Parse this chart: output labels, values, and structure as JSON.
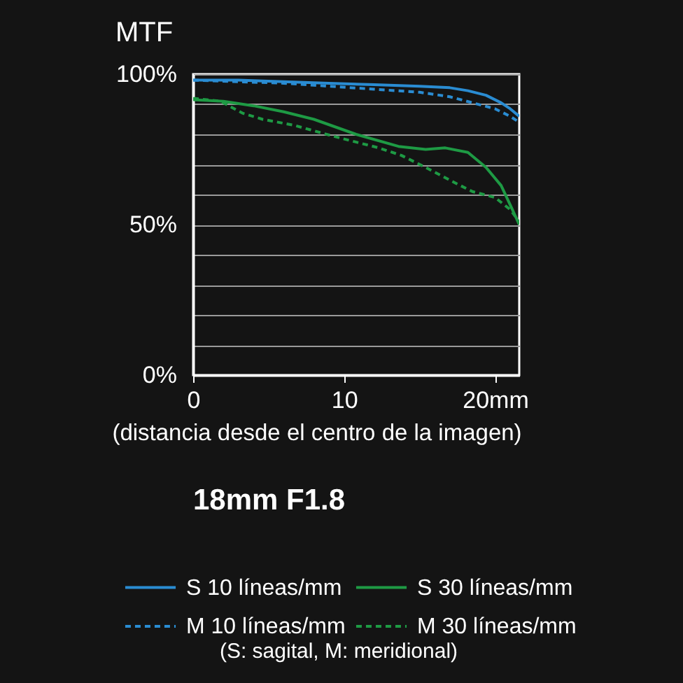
{
  "chart_data": {
    "type": "line",
    "title": "18mm F1.8",
    "ylabel": "MTF",
    "xlabel": "(distancia desde el centro de la imagen)",
    "annotations": [
      "(S: sagital, M: meridional)"
    ],
    "xlim": [
      0,
      21.6
    ],
    "xticks": [
      0,
      10,
      {
        "value": 20,
        "label": "20mm"
      }
    ],
    "ylim": [
      0,
      100
    ],
    "yticks": [
      {
        "value": 0,
        "label": "0%"
      },
      {
        "value": 10,
        "label": null
      },
      {
        "value": 20,
        "label": null
      },
      {
        "value": 30,
        "label": null
      },
      {
        "value": 40,
        "label": null
      },
      {
        "value": 50,
        "label": "50%"
      },
      {
        "value": 60,
        "label": null
      },
      {
        "value": 70,
        "label": null
      },
      {
        "value": 80,
        "label": null
      },
      {
        "value": 90,
        "label": null
      },
      {
        "value": 100,
        "label": "100%"
      }
    ],
    "grid": "y",
    "legend": "bottom",
    "series": [
      {
        "name": "S 10 líneas/mm",
        "color": "#2a8cd2",
        "line_style": "solid",
        "x": [
          0,
          3,
          6,
          9,
          12,
          15,
          17,
          18.2,
          19.4,
          20.4,
          21,
          21.6
        ],
        "values": [
          98,
          98,
          97.5,
          97,
          96.5,
          96,
          95.5,
          94.5,
          93,
          90.5,
          88.5,
          86
        ]
      },
      {
        "name": "S 30 líneas/mm",
        "color": "#1e9a44",
        "line_style": "solid",
        "x": [
          0,
          2,
          4,
          6,
          8,
          10.8,
          13.6,
          15.4,
          16.7,
          18.2,
          19.4,
          20.4,
          21.1,
          21.6
        ],
        "values": [
          91.5,
          91,
          89.5,
          87.5,
          85,
          80,
          76,
          75,
          75.5,
          74,
          69,
          63,
          55.5,
          50
        ]
      },
      {
        "name": "M 10 líneas/mm",
        "color": "#2a8cd2",
        "line_style": "dashed",
        "x": [
          0,
          3,
          6,
          9,
          12,
          15,
          17,
          18.5,
          20,
          21,
          21.6
        ],
        "values": [
          98,
          97.5,
          97,
          96,
          95,
          94,
          92.5,
          90.5,
          88.5,
          86,
          84
        ]
      },
      {
        "name": "M 30 líneas/mm",
        "color": "#1e9a44",
        "line_style": "dashed",
        "x": [
          0,
          1.8,
          3.3,
          4.6,
          6.7,
          9.2,
          12.3,
          13.8,
          15.4,
          17.3,
          18.5,
          20,
          21,
          21.6
        ],
        "values": [
          92,
          91,
          87,
          85,
          83,
          79.5,
          75.5,
          73,
          69,
          64,
          61,
          59,
          55,
          51
        ]
      }
    ]
  }
}
